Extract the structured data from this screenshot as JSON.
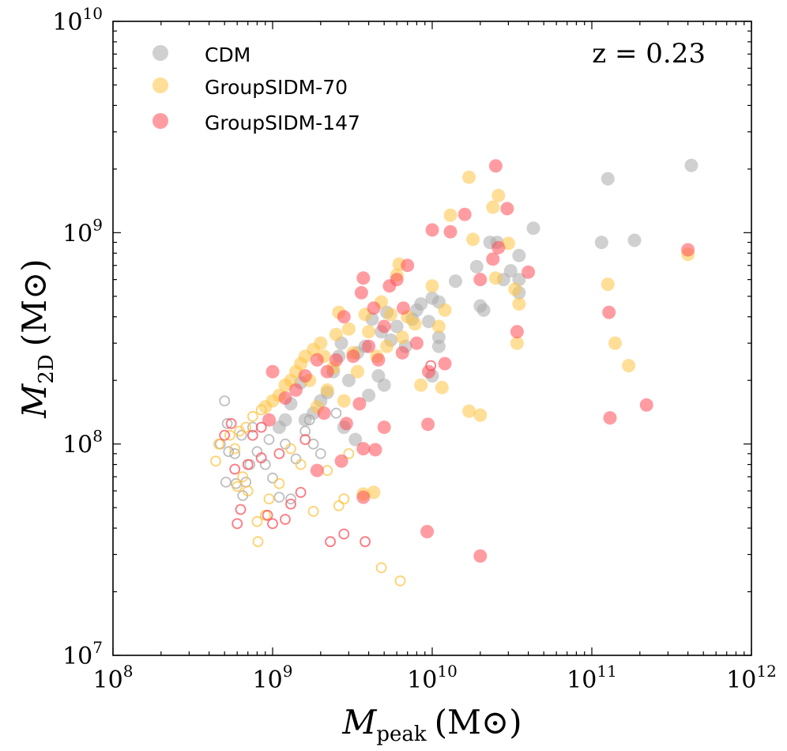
{
  "chart_data": {
    "type": "scatter",
    "title": "",
    "annotation": "z = 0.23",
    "xlabel": "M_peak (M⊙)",
    "ylabel": "M_2D (M⊙)",
    "xscale": "log",
    "yscale": "log",
    "xlim": [
      100000000,
      1000000000000
    ],
    "ylim": [
      10000000,
      10000000000
    ],
    "x_ticks": [
      {
        "value": 100000000,
        "base": "10",
        "exp": "8"
      },
      {
        "value": 1000000000,
        "base": "10",
        "exp": "9"
      },
      {
        "value": 10000000000,
        "base": "10",
        "exp": "10"
      },
      {
        "value": 100000000000,
        "base": "10",
        "exp": "11"
      },
      {
        "value": 1000000000000,
        "base": "10",
        "exp": "12"
      }
    ],
    "y_ticks": [
      {
        "value": 10000000,
        "base": "10",
        "exp": "7"
      },
      {
        "value": 100000000,
        "base": "10",
        "exp": "8"
      },
      {
        "value": 1000000000,
        "base": "10",
        "exp": "9"
      },
      {
        "value": 10000000000,
        "base": "10",
        "exp": "10"
      }
    ],
    "grid": false,
    "legend_position": "top-left",
    "series": [
      {
        "name": "CDM",
        "color": "#aaaaaa",
        "points": [
          [
            126000000000.0,
            1800000000.0
          ],
          [
            420000000000.0,
            2080000000.0
          ],
          [
            115000000000.0,
            900000000.0
          ],
          [
            185000000000.0,
            920000000.0
          ],
          [
            43000000000.0,
            1050000000.0
          ],
          [
            25500000000.0,
            900000000.0
          ],
          [
            19000000000.0,
            690000000.0
          ],
          [
            23000000000.0,
            900000000.0
          ],
          [
            31000000000.0,
            660000000.0
          ],
          [
            35000000000.0,
            780000000.0
          ],
          [
            14000000000.0,
            590000000.0
          ],
          [
            28000000000.0,
            600000000.0
          ],
          [
            35000000000.0,
            600000000.0
          ],
          [
            35000000000.0,
            520000000.0
          ],
          [
            20000000000.0,
            450000000.0
          ],
          [
            21000000000.0,
            430000000.0
          ],
          [
            10000000000.0,
            490000000.0
          ],
          [
            11000000000.0,
            470000000.0
          ],
          [
            8500000000.0,
            460000000.0
          ],
          [
            9500000000.0,
            380000000.0
          ],
          [
            11000000000.0,
            320000000.0
          ],
          [
            11000000000.0,
            290000000.0
          ],
          [
            10000000000.0,
            210000000.0
          ],
          [
            4200000000.0,
            390000000.0
          ],
          [
            4800000000.0,
            340000000.0
          ],
          [
            5200000000.0,
            420000000.0
          ],
          [
            6000000000.0,
            360000000.0
          ],
          [
            5500000000.0,
            310000000.0
          ],
          [
            3800000000.0,
            290000000.0
          ],
          [
            3400000000.0,
            270000000.0
          ],
          [
            2600000000.0,
            260000000.0
          ],
          [
            2400000000.0,
            220000000.0
          ],
          [
            3000000000.0,
            200000000.0
          ],
          [
            2200000000.0,
            175000000.0
          ],
          [
            2000000000.0,
            160000000.0
          ],
          [
            1800000000.0,
            140000000.0
          ],
          [
            1600000000.0,
            130000000.0
          ],
          [
            1300000000.0,
            155000000.0
          ],
          [
            1200000000.0,
            130000000.0
          ],
          [
            1100000000.0,
            120000000.0
          ],
          [
            4600000000.0,
            210000000.0
          ],
          [
            5000000000.0,
            190000000.0
          ],
          [
            4000000000.0,
            170000000.0
          ],
          [
            1500000000.0,
            195000000.0
          ],
          [
            2700000000.0,
            300000000.0
          ],
          [
            7500000000.0,
            390000000.0
          ],
          [
            8000000000.0,
            430000000.0
          ],
          [
            6800000000.0,
            290000000.0
          ],
          [
            2800000000.0,
            120000000.0
          ],
          [
            3300000000.0,
            105000000.0
          ]
        ]
      },
      {
        "name": "CDM (open)",
        "color": "#aaaaaa",
        "points": [
          [
            500000000.0,
            160000000.0
          ],
          [
            520000000.0,
            125000000.0
          ],
          [
            470000000.0,
            100000000.0
          ],
          [
            530000000.0,
            92000000.0
          ],
          [
            580000000.0,
            90000000.0
          ],
          [
            510000000.0,
            66000000.0
          ],
          [
            590000000.0,
            65000000.0
          ],
          [
            650000000.0,
            57000000.0
          ],
          [
            680000000.0,
            66000000.0
          ],
          [
            720000000.0,
            80000000.0
          ],
          [
            800000000.0,
            92000000.0
          ],
          [
            950000000.0,
            105000000.0
          ],
          [
            1000000000.0,
            69000000.0
          ],
          [
            1100000000.0,
            56000000.0
          ],
          [
            1200000000.0,
            100000000.0
          ],
          [
            1400000000.0,
            85000000.0
          ],
          [
            1600000000.0,
            115000000.0
          ],
          [
            1800000000.0,
            100000000.0
          ],
          [
            2000000000.0,
            90000000.0
          ],
          [
            750000000.0,
            120000000.0
          ],
          [
            640000000.0,
            110000000.0
          ],
          [
            1300000000.0,
            55000000.0
          ],
          [
            900000000.0,
            80000000.0
          ],
          [
            2500000000.0,
            140000000.0
          ],
          [
            1700000000.0,
            130000000.0
          ]
        ]
      },
      {
        "name": "GroupSIDM-70",
        "color": "#ffc342",
        "points": [
          [
            17000000000.0,
            1830000000.0
          ],
          [
            26000000000.0,
            1500000000.0
          ],
          [
            24000000000.0,
            1320000000.0
          ],
          [
            13000000000.0,
            1210000000.0
          ],
          [
            400000000000.0,
            790000000.0
          ],
          [
            18000000000.0,
            930000000.0
          ],
          [
            30000000000.0,
            890000000.0
          ],
          [
            126000000000.0,
            570000000.0
          ],
          [
            140000000000.0,
            300000000.0
          ],
          [
            170000000000.0,
            235000000.0
          ],
          [
            17000000000.0,
            143000000.0
          ],
          [
            20000000000.0,
            137000000.0
          ],
          [
            35000000000.0,
            460000000.0
          ],
          [
            34000000000.0,
            300000000.0
          ],
          [
            33000000000.0,
            540000000.0
          ],
          [
            25000000000.0,
            610000000.0
          ],
          [
            10000000000.0,
            560000000.0
          ],
          [
            12000000000.0,
            430000000.0
          ],
          [
            11500000000.0,
            185000000.0
          ],
          [
            8500000000.0,
            190000000.0
          ],
          [
            6200000000.0,
            710000000.0
          ],
          [
            6000000000.0,
            630000000.0
          ],
          [
            7000000000.0,
            400000000.0
          ],
          [
            5500000000.0,
            410000000.0
          ],
          [
            4800000000.0,
            470000000.0
          ],
          [
            3800000000.0,
            410000000.0
          ],
          [
            4000000000.0,
            340000000.0
          ],
          [
            3000000000.0,
            350000000.0
          ],
          [
            2600000000.0,
            420000000.0
          ],
          [
            2500000000.0,
            330000000.0
          ],
          [
            2000000000.0,
            300000000.0
          ],
          [
            1800000000.0,
            280000000.0
          ],
          [
            1600000000.0,
            260000000.0
          ],
          [
            1500000000.0,
            240000000.0
          ],
          [
            1400000000.0,
            220000000.0
          ],
          [
            1300000000.0,
            200000000.0
          ],
          [
            1200000000.0,
            190000000.0
          ],
          [
            1100000000.0,
            170000000.0
          ],
          [
            1000000000.0,
            160000000.0
          ],
          [
            900000000.0,
            150000000.0
          ],
          [
            2200000000.0,
            180000000.0
          ],
          [
            2800000000.0,
            160000000.0
          ],
          [
            3400000000.0,
            220000000.0
          ],
          [
            4500000000.0,
            260000000.0
          ],
          [
            5200000000.0,
            290000000.0
          ],
          [
            6500000000.0,
            320000000.0
          ],
          [
            7800000000.0,
            370000000.0
          ],
          [
            4300000000.0,
            59000000.0
          ],
          [
            3700000000.0,
            58000000.0
          ],
          [
            2100000000.0,
            260000000.0
          ],
          [
            1700000000.0,
            200000000.0
          ],
          [
            2400000000.0,
            230000000.0
          ],
          [
            3200000000.0,
            270000000.0
          ],
          [
            11000000000.0,
            360000000.0
          ],
          [
            1900000000.0,
            150000000.0
          ]
        ]
      },
      {
        "name": "GroupSIDM-70 (open)",
        "color": "#ffc342",
        "points": [
          [
            440000000.0,
            83000000.0
          ],
          [
            460000000.0,
            100000000.0
          ],
          [
            540000000.0,
            110000000.0
          ],
          [
            580000000.0,
            95000000.0
          ],
          [
            620000000.0,
            115000000.0
          ],
          [
            680000000.0,
            120000000.0
          ],
          [
            750000000.0,
            135000000.0
          ],
          [
            850000000.0,
            145000000.0
          ],
          [
            600000000.0,
            63000000.0
          ],
          [
            650000000.0,
            70000000.0
          ],
          [
            700000000.0,
            60000000.0
          ],
          [
            800000000.0,
            43000000.0
          ],
          [
            810000000.0,
            34500000.0
          ],
          [
            900000000.0,
            46000000.0
          ],
          [
            950000000.0,
            55000000.0
          ],
          [
            1800000000.0,
            48000000.0
          ],
          [
            2600000000.0,
            51000000.0
          ],
          [
            2800000000.0,
            55000000.0
          ],
          [
            3000000000.0,
            90000000.0
          ],
          [
            2200000000.0,
            75000000.0
          ],
          [
            4800000000.0,
            26000000.0
          ],
          [
            6300000000.0,
            22500000.0
          ],
          [
            1300000000.0,
            95000000.0
          ],
          [
            1500000000.0,
            80000000.0
          ],
          [
            1100000000.0,
            65000000.0
          ]
        ]
      },
      {
        "name": "GroupSIDM-147",
        "color": "#ff4b55",
        "points": [
          [
            25000000000.0,
            2070000000.0
          ],
          [
            16000000000.0,
            1220000000.0
          ],
          [
            29500000000.0,
            1300000000.0
          ],
          [
            10000000000.0,
            1030000000.0
          ],
          [
            13000000000.0,
            1010000000.0
          ],
          [
            400000000000.0,
            830000000.0
          ],
          [
            24000000000.0,
            750000000.0
          ],
          [
            26000000000.0,
            850000000.0
          ],
          [
            40000000000.0,
            650000000.0
          ],
          [
            20000000000.0,
            600000000.0
          ],
          [
            128000000000.0,
            420000000.0
          ],
          [
            130000000000.0,
            133000000.0
          ],
          [
            220000000000.0,
            153000000.0
          ],
          [
            34000000000.0,
            340000000.0
          ],
          [
            9400000000.0,
            124000000.0
          ],
          [
            9300000000.0,
            38500000.0
          ],
          [
            20000000000.0,
            29500000.0
          ],
          [
            12000000000.0,
            240000000.0
          ],
          [
            9500000000.0,
            220000000.0
          ],
          [
            7000000000.0,
            700000000.0
          ],
          [
            6000000000.0,
            600000000.0
          ],
          [
            3700000000.0,
            610000000.0
          ],
          [
            3600000000.0,
            520000000.0
          ],
          [
            2800000000.0,
            400000000.0
          ],
          [
            4300000000.0,
            440000000.0
          ],
          [
            5400000000.0,
            560000000.0
          ],
          [
            6600000000.0,
            440000000.0
          ],
          [
            5000000000.0,
            360000000.0
          ],
          [
            4000000000.0,
            290000000.0
          ],
          [
            3200000000.0,
            260000000.0
          ],
          [
            2500000000.0,
            250000000.0
          ],
          [
            2200000000.0,
            220000000.0
          ],
          [
            1900000000.0,
            250000000.0
          ],
          [
            1600000000.0,
            210000000.0
          ],
          [
            1400000000.0,
            180000000.0
          ],
          [
            1200000000.0,
            165000000.0
          ],
          [
            1000000000.0,
            220000000.0
          ],
          [
            950000000.0,
            130000000.0
          ],
          [
            3500000000.0,
            155000000.0
          ],
          [
            2900000000.0,
            125000000.0
          ],
          [
            5000000000.0,
            120000000.0
          ],
          [
            3700000000.0,
            95000000.0
          ],
          [
            2700000000.0,
            83000000.0
          ],
          [
            1900000000.0,
            75000000.0
          ],
          [
            3700000000.0,
            56000000.0
          ],
          [
            4400000000.0,
            94000000.0
          ],
          [
            8000000000.0,
            300000000.0
          ],
          [
            6500000000.0,
            270000000.0
          ],
          [
            4600000000.0,
            250000000.0
          ],
          [
            2100000000.0,
            140000000.0
          ]
        ]
      },
      {
        "name": "GroupSIDM-147 (open)",
        "color": "#ff4b55",
        "points": [
          [
            500000000.0,
            110000000.0
          ],
          [
            550000000.0,
            125000000.0
          ],
          [
            580000000.0,
            76000000.0
          ],
          [
            600000000.0,
            42000000.0
          ],
          [
            630000000.0,
            49000000.0
          ],
          [
            700000000.0,
            80000000.0
          ],
          [
            750000000.0,
            110000000.0
          ],
          [
            850000000.0,
            86000000.0
          ],
          [
            930000000.0,
            46000000.0
          ],
          [
            1000000000.0,
            42000000.0
          ],
          [
            1200000000.0,
            44000000.0
          ],
          [
            1300000000.0,
            52000000.0
          ],
          [
            1500000000.0,
            59000000.0
          ],
          [
            1600000000.0,
            105000000.0
          ],
          [
            2300000000.0,
            34500000.0
          ],
          [
            2800000000.0,
            37500000.0
          ],
          [
            3800000000.0,
            34500000.0
          ],
          [
            9800000000.0,
            235000000.0
          ],
          [
            850000000.0,
            120000000.0
          ],
          [
            1100000000.0,
            90000000.0
          ]
        ]
      }
    ],
    "legend": [
      {
        "label": "CDM",
        "color": "#aaaaaa"
      },
      {
        "label": "GroupSIDM-70",
        "color": "#ffc342"
      },
      {
        "label": "GroupSIDM-147",
        "color": "#ff4b55"
      }
    ]
  }
}
